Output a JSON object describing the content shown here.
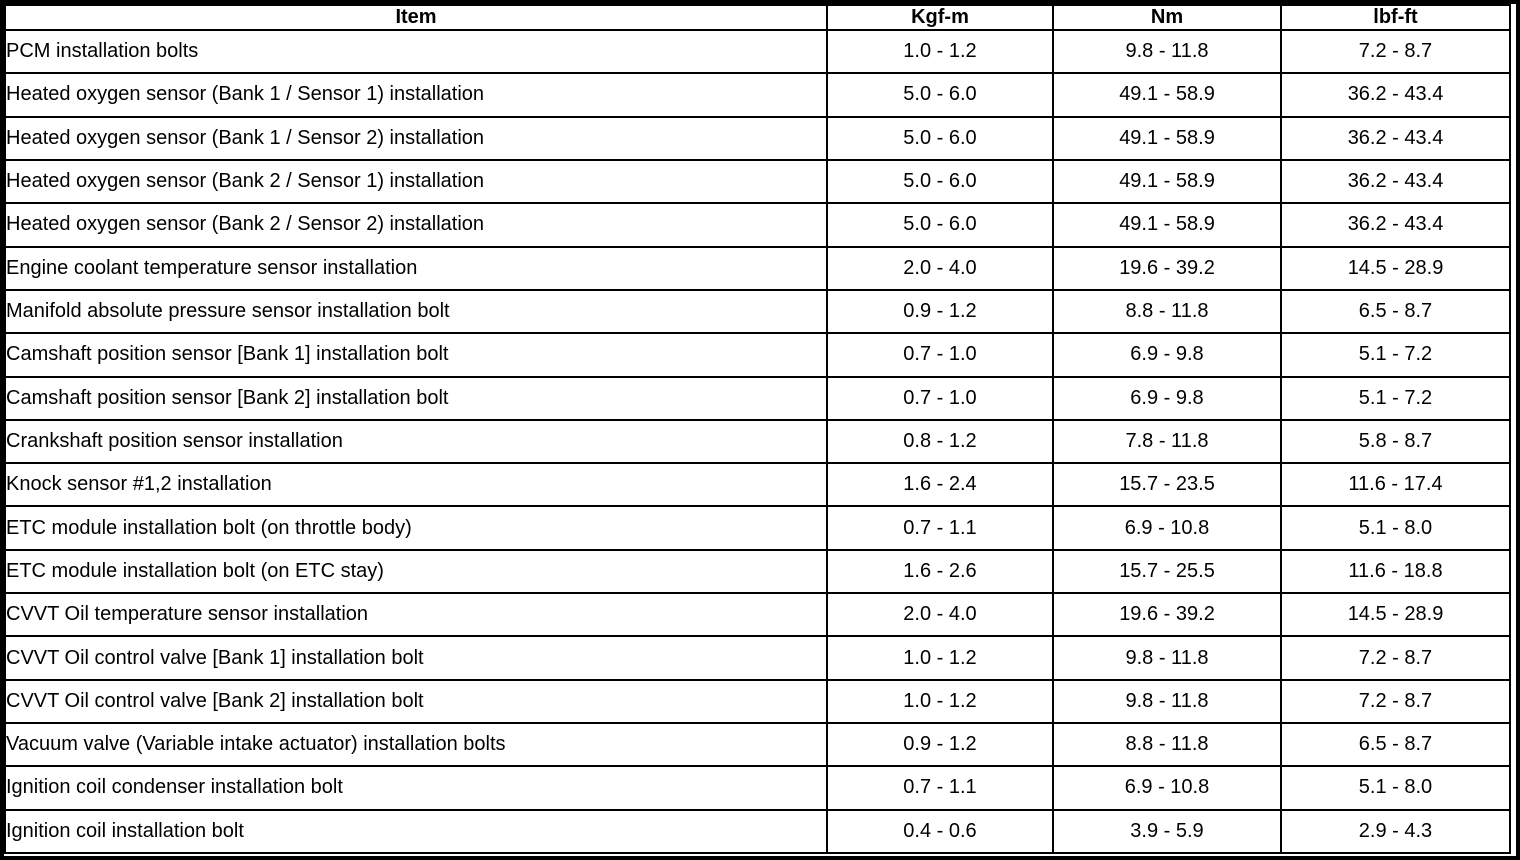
{
  "colors": {
    "border": "#000000",
    "background": "#ffffff",
    "text": "#000000"
  },
  "table": {
    "headers": [
      "Item",
      "Kgf-m",
      "Nm",
      "lbf-ft"
    ],
    "rows": [
      [
        "PCM installation bolts",
        "1.0 - 1.2",
        "9.8 - 11.8",
        "7.2 - 8.7"
      ],
      [
        "Heated oxygen sensor (Bank 1 / Sensor 1) installation",
        "5.0 - 6.0",
        "49.1 - 58.9",
        "36.2 - 43.4"
      ],
      [
        "Heated oxygen sensor (Bank 1 / Sensor 2) installation",
        "5.0 - 6.0",
        "49.1 - 58.9",
        "36.2 - 43.4"
      ],
      [
        "Heated oxygen sensor (Bank 2 / Sensor 1) installation",
        "5.0 - 6.0",
        "49.1 - 58.9",
        "36.2 - 43.4"
      ],
      [
        "Heated oxygen sensor (Bank 2 / Sensor 2) installation",
        "5.0 - 6.0",
        "49.1 - 58.9",
        "36.2 - 43.4"
      ],
      [
        "Engine coolant temperature sensor installation",
        "2.0 - 4.0",
        "19.6 - 39.2",
        "14.5 - 28.9"
      ],
      [
        "Manifold absolute pressure sensor installation bolt",
        "0.9 - 1.2",
        "8.8 - 11.8",
        "6.5 - 8.7"
      ],
      [
        "Camshaft position sensor [Bank 1] installation bolt",
        "0.7 - 1.0",
        "6.9 - 9.8",
        "5.1 - 7.2"
      ],
      [
        "Camshaft position sensor [Bank 2] installation bolt",
        "0.7 - 1.0",
        "6.9 - 9.8",
        "5.1 - 7.2"
      ],
      [
        "Crankshaft position sensor installation",
        "0.8 - 1.2",
        "7.8 - 11.8",
        "5.8 - 8.7"
      ],
      [
        "Knock sensor #1,2 installation",
        "1.6 - 2.4",
        "15.7 - 23.5",
        "11.6 - 17.4"
      ],
      [
        "ETC module installation bolt (on throttle body)",
        "0.7 - 1.1",
        "6.9 - 10.8",
        "5.1 - 8.0"
      ],
      [
        "ETC module installation bolt (on ETC stay)",
        "1.6 - 2.6",
        "15.7 - 25.5",
        "11.6 - 18.8"
      ],
      [
        "CVVT Oil temperature sensor installation",
        "2.0 - 4.0",
        "19.6 - 39.2",
        "14.5 - 28.9"
      ],
      [
        "CVVT Oil control valve [Bank 1] installation bolt",
        "1.0 - 1.2",
        "9.8 - 11.8",
        "7.2 - 8.7"
      ],
      [
        "CVVT Oil control valve [Bank 2] installation bolt",
        "1.0 - 1.2",
        "9.8 - 11.8",
        "7.2 - 8.7"
      ],
      [
        "Vacuum valve (Variable intake actuator) installation bolts",
        "0.9 - 1.2",
        "8.8 - 11.8",
        "6.5 - 8.7"
      ],
      [
        "Ignition coil condenser installation bolt",
        "0.7 - 1.1",
        "6.9 - 10.8",
        "5.1 - 8.0"
      ],
      [
        "Ignition coil installation bolt",
        "0.4 - 0.6",
        "3.9 - 5.9",
        "2.9 - 4.3"
      ]
    ]
  }
}
